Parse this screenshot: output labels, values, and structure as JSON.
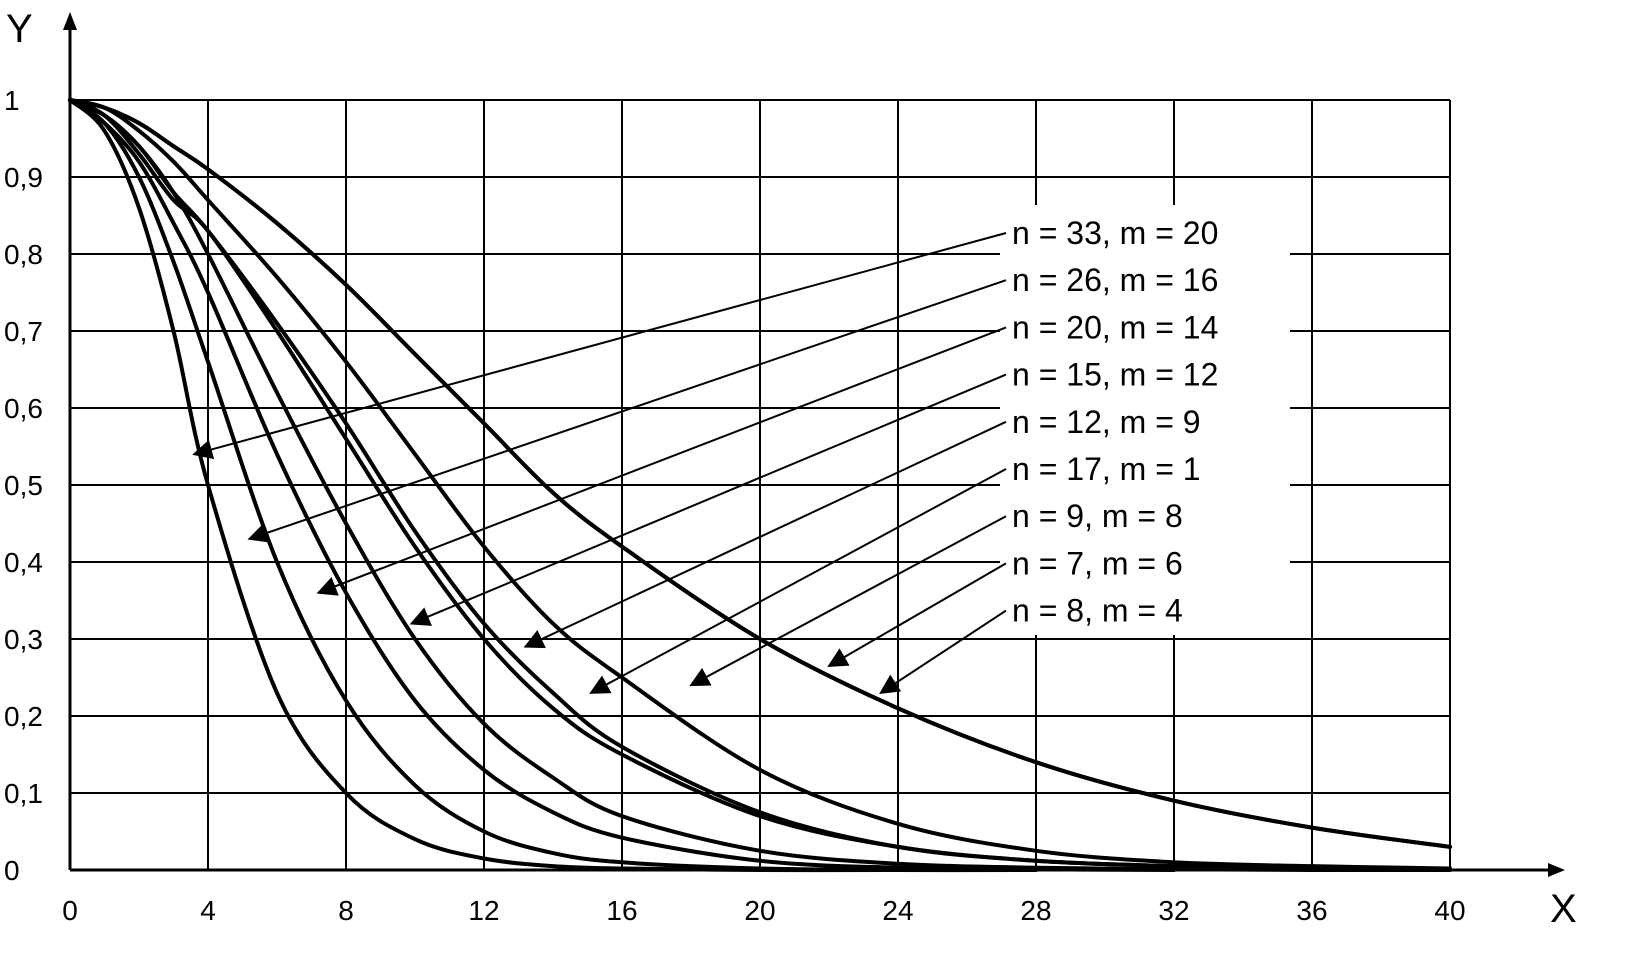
{
  "chart_data": {
    "type": "line",
    "title": "",
    "xlabel": "X",
    "ylabel": "Y",
    "xlim": [
      0,
      40
    ],
    "ylim": [
      0,
      1
    ],
    "grid": true,
    "x_ticks": [
      0,
      4,
      8,
      12,
      16,
      20,
      24,
      28,
      32,
      36,
      40
    ],
    "x_tick_labels": [
      "0",
      "4",
      "8",
      "12",
      "16",
      "20",
      "24",
      "28",
      "32",
      "36",
      "40"
    ],
    "y_ticks": [
      0,
      0.1,
      0.2,
      0.3,
      0.4,
      0.5,
      0.6,
      0.7,
      0.8,
      0.9,
      1
    ],
    "y_tick_labels": [
      "0",
      "0,1",
      "0,2",
      "0,3",
      "0,4",
      "0,5",
      "0,6",
      "0,7",
      "0,8",
      "0,9",
      "1"
    ],
    "series": [
      {
        "name": "n = 33, m = 20",
        "x": [
          0,
          1,
          2,
          3,
          4,
          6,
          8,
          10,
          12,
          14,
          16,
          20,
          24
        ],
        "y": [
          1,
          0.96,
          0.86,
          0.7,
          0.5,
          0.23,
          0.1,
          0.04,
          0.015,
          0.005,
          0.002,
          0,
          0
        ],
        "label_arrow_target": [
          3.6,
          0.54
        ]
      },
      {
        "name": "n = 26, m = 16",
        "x": [
          0,
          1,
          2,
          3,
          4,
          6,
          8,
          10,
          12,
          14,
          16,
          20,
          24,
          28
        ],
        "y": [
          1,
          0.97,
          0.9,
          0.79,
          0.66,
          0.4,
          0.22,
          0.11,
          0.05,
          0.022,
          0.01,
          0.002,
          0,
          0
        ],
        "label_arrow_target": [
          5.2,
          0.43
        ]
      },
      {
        "name": "n = 20, m = 14",
        "x": [
          0,
          1,
          2,
          3,
          4,
          6,
          8,
          10,
          12,
          14,
          16,
          20,
          24,
          28,
          32
        ],
        "y": [
          1,
          0.97,
          0.92,
          0.84,
          0.75,
          0.54,
          0.36,
          0.22,
          0.13,
          0.075,
          0.042,
          0.012,
          0.003,
          0.001,
          0
        ],
        "label_arrow_target": [
          7.2,
          0.36
        ]
      },
      {
        "name": "n = 15, m = 12",
        "x": [
          0,
          1,
          2,
          3,
          4,
          6,
          8,
          10,
          12,
          14,
          16,
          20,
          24,
          28,
          32,
          36,
          40
        ],
        "y": [
          1,
          0.98,
          0.94,
          0.88,
          0.8,
          0.62,
          0.45,
          0.3,
          0.19,
          0.12,
          0.07,
          0.025,
          0.008,
          0.003,
          0.001,
          0,
          0
        ],
        "label_arrow_target": [
          9.9,
          0.32
        ]
      },
      {
        "name": "n = 12, m = 9",
        "x": [
          0,
          1,
          2,
          3,
          4,
          6,
          8,
          10,
          12,
          14,
          16,
          20,
          24,
          28,
          32,
          36,
          40
        ],
        "y": [
          1,
          0.98,
          0.93,
          0.87,
          0.83,
          0.7,
          0.56,
          0.42,
          0.3,
          0.21,
          0.15,
          0.07,
          0.03,
          0.012,
          0.005,
          0.002,
          0.001
        ],
        "label_arrow_target": [
          13.2,
          0.29
        ]
      },
      {
        "name": "n = 17, m = 1",
        "x": [
          0,
          1,
          2,
          3,
          4,
          6,
          8,
          10,
          12,
          14,
          16,
          20,
          24,
          28,
          32,
          36,
          40
        ],
        "y": [
          1,
          0.98,
          0.94,
          0.88,
          0.83,
          0.71,
          0.58,
          0.44,
          0.32,
          0.23,
          0.16,
          0.075,
          0.03,
          0.012,
          0.005,
          0.002,
          0.001
        ],
        "label_arrow_target": [
          15.1,
          0.23
        ]
      },
      {
        "name": "n = 9, m = 8",
        "x": [
          0,
          1,
          2,
          3,
          4,
          6,
          8,
          10,
          12,
          14,
          16,
          20,
          24,
          28,
          32,
          36,
          40
        ],
        "y": [
          1,
          0.99,
          0.96,
          0.92,
          0.87,
          0.77,
          0.66,
          0.54,
          0.42,
          0.32,
          0.25,
          0.13,
          0.06,
          0.025,
          0.01,
          0.005,
          0.002
        ],
        "label_arrow_target": [
          18,
          0.24
        ]
      },
      {
        "name": "n = 7, m = 6",
        "x": [
          0,
          1,
          2,
          3,
          4,
          6,
          8,
          10,
          12,
          14,
          16,
          20,
          24,
          28,
          32,
          36,
          40
        ],
        "y": [
          1,
          0.99,
          0.97,
          0.94,
          0.91,
          0.84,
          0.76,
          0.67,
          0.58,
          0.49,
          0.42,
          0.3,
          0.21,
          0.14,
          0.09,
          0.055,
          0.03
        ],
        "label_arrow_target": [
          22,
          0.265
        ]
      },
      {
        "name": "n = 8, m = 4",
        "x": [
          0,
          1,
          2,
          3,
          4,
          6,
          8,
          10,
          12,
          14,
          16,
          20,
          24,
          28,
          32,
          36,
          40
        ],
        "y": [
          1,
          0.99,
          0.97,
          0.94,
          0.91,
          0.84,
          0.76,
          0.67,
          0.58,
          0.49,
          0.42,
          0.3,
          0.21,
          0.14,
          0.09,
          0.055,
          0.03
        ],
        "label_arrow_target": [
          23.5,
          0.23
        ]
      }
    ]
  }
}
